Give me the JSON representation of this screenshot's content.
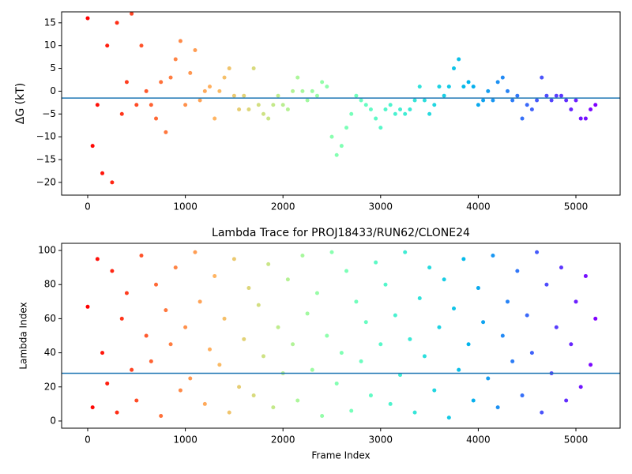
{
  "chart_data": [
    {
      "type": "scatter",
      "ylabel": "ΔG (kT)",
      "colormap": "rainbow_r",
      "hline": -1.5,
      "hline_color": "#1f77b4",
      "xlim": [
        -267,
        5453
      ],
      "ylim": [
        -22.8,
        17.4
      ],
      "xticks": [
        0,
        1000,
        2000,
        3000,
        4000,
        5000
      ],
      "yticks": [
        {
          "value": -20,
          "label": "−20"
        },
        {
          "value": -15,
          "label": "−15"
        },
        {
          "value": -10,
          "label": "−10"
        },
        {
          "value": -5,
          "label": "−5"
        },
        0,
        5,
        10,
        15
      ],
      "x": [
        0,
        50,
        100,
        150,
        200,
        250,
        300,
        350,
        400,
        450,
        500,
        550,
        600,
        650,
        700,
        750,
        800,
        850,
        900,
        950,
        1000,
        1050,
        1100,
        1150,
        1200,
        1250,
        1300,
        1350,
        1400,
        1450,
        1500,
        1550,
        1600,
        1650,
        1700,
        1750,
        1800,
        1850,
        1900,
        1950,
        2000,
        2050,
        2100,
        2150,
        2200,
        2250,
        2300,
        2350,
        2400,
        2450,
        2500,
        2550,
        2600,
        2650,
        2700,
        2750,
        2800,
        2850,
        2900,
        2950,
        3000,
        3050,
        3100,
        3150,
        3200,
        3250,
        3300,
        3350,
        3400,
        3450,
        3500,
        3550,
        3600,
        3650,
        3700,
        3750,
        3800,
        3850,
        3900,
        3950,
        4000,
        4050,
        4100,
        4150,
        4200,
        4250,
        4300,
        4350,
        4400,
        4450,
        4500,
        4550,
        4600,
        4650,
        4700,
        4750,
        4800,
        4850,
        4900,
        4950,
        5000,
        5050,
        5100,
        5150,
        5200
      ],
      "values": [
        16,
        -12,
        -3,
        -18,
        10,
        -20,
        15,
        -5,
        2,
        17,
        -3,
        10,
        0,
        -3,
        -6,
        2,
        -9,
        3,
        7,
        11,
        -3,
        4,
        9,
        -2,
        0,
        1,
        -6,
        0,
        3,
        5,
        -1,
        -4,
        -1,
        -4,
        5,
        -3,
        -5,
        -6,
        -3,
        -1,
        -3,
        -4,
        0,
        3,
        0,
        -2,
        0,
        -1,
        2,
        1,
        -10,
        -14,
        -12,
        -8,
        -5,
        -1,
        -2,
        -3,
        -4,
        -6,
        -8,
        -4,
        -3,
        -5,
        -4,
        -5,
        -4,
        -2,
        1,
        -2,
        -5,
        -3,
        1,
        -1,
        1,
        5,
        7,
        1,
        2,
        1,
        -3,
        -2,
        0,
        -2,
        2,
        3,
        0,
        -2,
        -1,
        -6,
        -3,
        -4,
        -2,
        3,
        -1,
        -2,
        -1,
        -1,
        -2,
        -4,
        -2,
        -6,
        -6,
        -4,
        -3
      ]
    },
    {
      "type": "scatter",
      "title": "Lambda Trace for PROJ18433/RUN62/CLONE24",
      "xlabel": "Frame Index",
      "ylabel": "Lambda Index",
      "colormap": "rainbow_r",
      "hline": 28,
      "hline_color": "#1f77b4",
      "xlim": [
        -267,
        5453
      ],
      "ylim": [
        -4.2,
        104.2
      ],
      "xticks": [
        0,
        1000,
        2000,
        3000,
        4000,
        5000
      ],
      "yticks": [
        0,
        20,
        40,
        60,
        80,
        100
      ],
      "x": [
        0,
        50,
        100,
        150,
        200,
        250,
        300,
        350,
        400,
        450,
        500,
        550,
        600,
        650,
        700,
        750,
        800,
        850,
        900,
        950,
        1000,
        1050,
        1100,
        1150,
        1200,
        1250,
        1300,
        1350,
        1400,
        1450,
        1500,
        1550,
        1600,
        1650,
        1700,
        1750,
        1800,
        1850,
        1900,
        1950,
        2000,
        2050,
        2100,
        2150,
        2200,
        2250,
        2300,
        2350,
        2400,
        2450,
        2500,
        2550,
        2600,
        2650,
        2700,
        2750,
        2800,
        2850,
        2900,
        2950,
        3000,
        3050,
        3100,
        3150,
        3200,
        3250,
        3300,
        3350,
        3400,
        3450,
        3500,
        3550,
        3600,
        3650,
        3700,
        3750,
        3800,
        3850,
        3900,
        3950,
        4000,
        4050,
        4100,
        4150,
        4200,
        4250,
        4300,
        4350,
        4400,
        4450,
        4500,
        4550,
        4600,
        4650,
        4700,
        4750,
        4800,
        4850,
        4900,
        4950,
        5000,
        5050,
        5100,
        5150,
        5200
      ],
      "values": [
        67,
        8,
        95,
        40,
        22,
        88,
        5,
        60,
        75,
        30,
        12,
        97,
        50,
        35,
        80,
        3,
        65,
        45,
        90,
        18,
        55,
        25,
        99,
        70,
        10,
        42,
        85,
        33,
        60,
        5,
        95,
        20,
        48,
        78,
        15,
        68,
        38,
        92,
        8,
        55,
        28,
        83,
        45,
        12,
        97,
        63,
        30,
        75,
        3,
        50,
        99,
        22,
        40,
        88,
        6,
        70,
        35,
        58,
        15,
        93,
        45,
        80,
        10,
        62,
        27,
        99,
        48,
        5,
        72,
        38,
        90,
        18,
        55,
        83,
        2,
        66,
        30,
        95,
        45,
        12,
        78,
        58,
        25,
        97,
        8,
        50,
        70,
        35,
        88,
        15,
        62,
        40,
        99,
        5,
        80,
        28,
        55,
        90,
        12,
        45,
        70,
        20,
        85,
        33,
        60
      ]
    }
  ]
}
